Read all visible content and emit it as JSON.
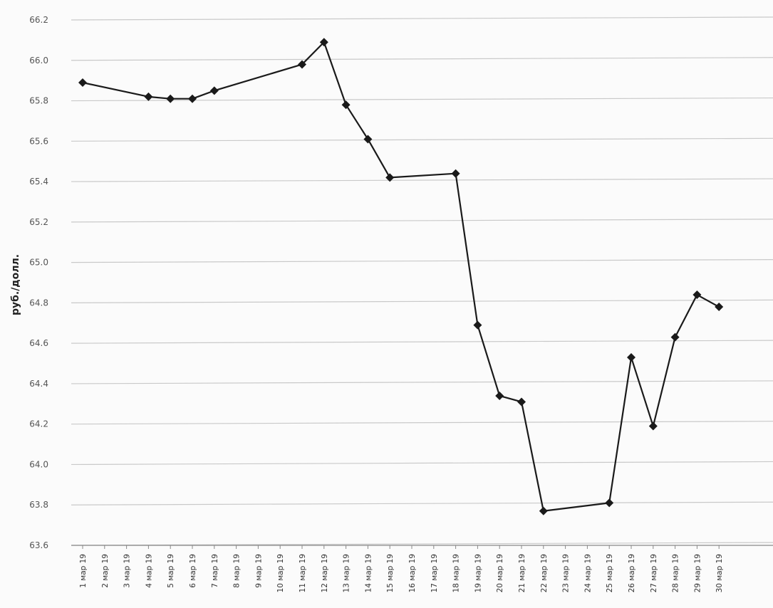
{
  "chart_data": {
    "type": "line",
    "ylabel": "руб./долл.",
    "xlabel": "",
    "title": "",
    "ylim": [
      63.6,
      66.2
    ],
    "yticks": [
      63.6,
      63.8,
      64.0,
      64.2,
      64.4,
      64.6,
      64.8,
      65.0,
      65.2,
      65.4,
      65.6,
      65.8,
      66.0,
      66.2
    ],
    "ytick_labels": [
      "63.6",
      "63.8",
      "64.0",
      "64.2",
      "64.4",
      "64.6",
      "64.8",
      "65.0",
      "65.2",
      "65.4",
      "65.6",
      "65.8",
      "66.0",
      "66.2"
    ],
    "grid": true,
    "x": [
      "1 мар 19",
      "2 мар 19",
      "3 мар 19",
      "4 мар 19",
      "5 мар 19",
      "6 мар 19",
      "7 мар 19",
      "8 мар 19",
      "9 мар 19",
      "10 мар 19",
      "11 мар 19",
      "12 мар 19",
      "13 мар 19",
      "14 мар 19",
      "15 мар 19",
      "16 мар 19",
      "17 мар 19",
      "18 мар 19",
      "19 мар 19",
      "20 мар 19",
      "21 мар 19",
      "22 мар 19",
      "23 мар 19",
      "24 мар 19",
      "25 мар 19",
      "26 мар 19",
      "27 мар 19",
      "28 мар 19",
      "29 мар 19",
      "30 мар 19"
    ],
    "series": [
      {
        "color": "#1a1a1a",
        "points": [
          {
            "x": "1 мар 19",
            "y": 65.89
          },
          {
            "x": "4 мар 19",
            "y": 65.82
          },
          {
            "x": "5 мар 19",
            "y": 65.81
          },
          {
            "x": "6 мар 19",
            "y": 65.81
          },
          {
            "x": "7 мар 19",
            "y": 65.85
          },
          {
            "x": "11 мар 19",
            "y": 65.98
          },
          {
            "x": "12 мар 19",
            "y": 66.09
          },
          {
            "x": "13 мар 19",
            "y": 65.78
          },
          {
            "x": "14 мар 19",
            "y": 65.61
          },
          {
            "x": "15 мар 19",
            "y": 65.42
          },
          {
            "x": "18 мар 19",
            "y": 65.44
          },
          {
            "x": "19 мар 19",
            "y": 64.69
          },
          {
            "x": "20 мар 19",
            "y": 64.34
          },
          {
            "x": "21 мар 19",
            "y": 64.31
          },
          {
            "x": "22 мар 19",
            "y": 63.77
          },
          {
            "x": "25 мар 19",
            "y": 63.81
          },
          {
            "x": "26 мар 19",
            "y": 64.53
          },
          {
            "x": "27 мар 19",
            "y": 64.19
          },
          {
            "x": "28 мар 19",
            "y": 64.63
          },
          {
            "x": "29 мар 19",
            "y": 64.84
          },
          {
            "x": "30 мар 19",
            "y": 64.78
          }
        ]
      }
    ]
  }
}
